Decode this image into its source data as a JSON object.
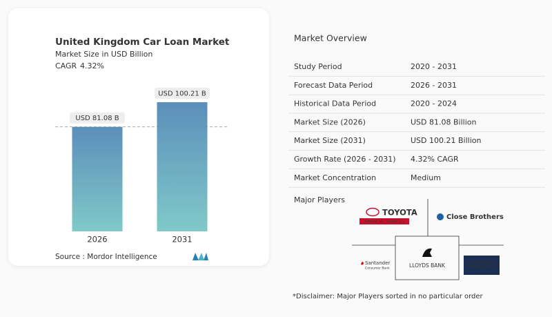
{
  "chart_data": {
    "type": "bar",
    "title": "United Kingdom Car Loan Market",
    "subtitle": "Market Size in USD Billion",
    "cagr_label": "CAGR",
    "cagr": "4.32%",
    "categories": [
      "2026",
      "2031"
    ],
    "values": [
      81.08,
      100.21
    ],
    "value_labels": [
      "USD 81.08 B",
      "USD 100.21 B"
    ],
    "colors": [
      "#5b8fba",
      "#80c9c9"
    ],
    "source": "Source :  Mordor Intelligence"
  },
  "overview": {
    "title": "Market Overview",
    "rows": [
      [
        "Study Period",
        "2020 - 2031"
      ],
      [
        "Forecast Data Period",
        "2026 - 2031"
      ],
      [
        "Historical Data Period",
        "2020 - 2024"
      ],
      [
        "Market Size (2026)",
        "USD 81.08 Billion"
      ],
      [
        "Market Size (2031)",
        "USD 100.21 Billion"
      ],
      [
        "Growth Rate (2026 - 2031)",
        "4.32% CAGR"
      ],
      [
        "Market Concentration",
        "Medium"
      ]
    ]
  },
  "major_players": {
    "title": "Major Players",
    "logos": [
      [
        "TOYOTA",
        "FINANCIAL SERVICES"
      ],
      [
        "Close Brothers"
      ],
      [
        "Santander",
        "Consumer Bank"
      ],
      [
        "LLOYDS BANK"
      ],
      [
        "VOLKSWAGEN",
        "FINANCIAL SERVICES"
      ]
    ]
  },
  "disclaimer": "*Disclaimer: Major Players sorted in no particular order"
}
